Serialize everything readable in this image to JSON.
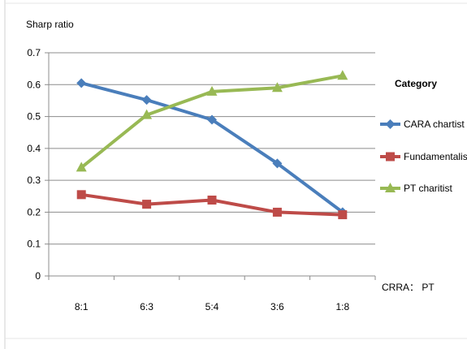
{
  "chart_data": {
    "type": "line",
    "ylabel": "Sharp ratio",
    "xlabel": "CRRA： PT",
    "categories": [
      "8:1",
      "6:3",
      "5:4",
      "3:6",
      "1:8"
    ],
    "ylim": [
      0,
      0.7
    ],
    "yticks": [
      0,
      0.1,
      0.2,
      0.3,
      0.4,
      0.5,
      0.6,
      0.7
    ],
    "grid": true,
    "legend": {
      "title": "Category",
      "placement": "right"
    },
    "series": [
      {
        "name": "CARA chartist",
        "color": "#4a7ebb",
        "marker": "diamond",
        "values": [
          0.605,
          0.552,
          0.49,
          0.353,
          0.2
        ]
      },
      {
        "name": "Fundamentalist",
        "color": "#be4b48",
        "marker": "square",
        "values": [
          0.255,
          0.225,
          0.238,
          0.2,
          0.192
        ]
      },
      {
        "name": "PT charitist",
        "color": "#98b954",
        "marker": "triangle",
        "values": [
          0.34,
          0.505,
          0.578,
          0.59,
          0.628
        ]
      }
    ]
  }
}
